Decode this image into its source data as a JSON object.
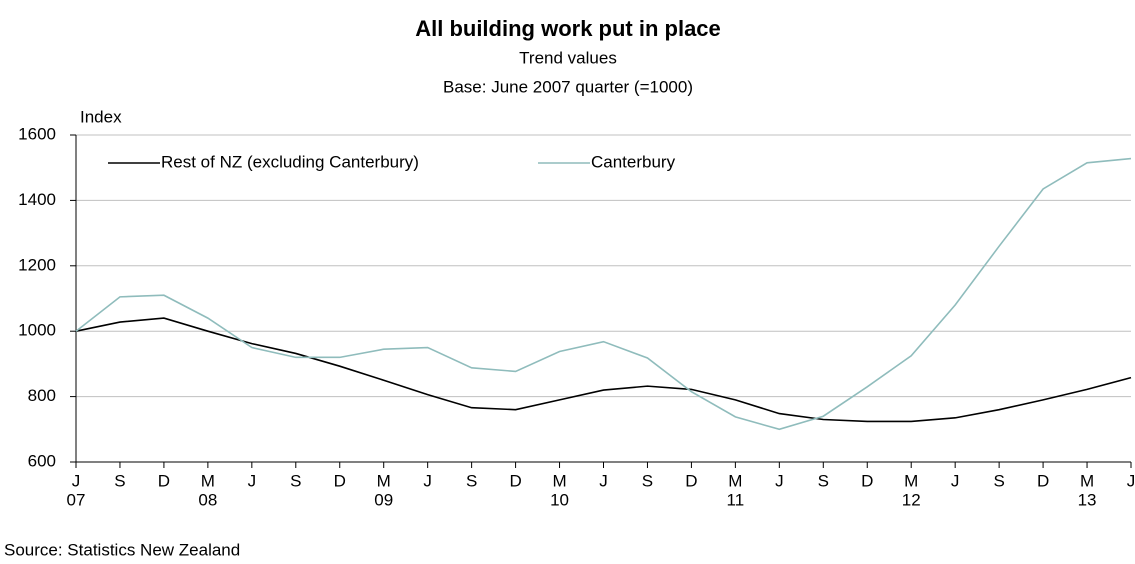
{
  "chart_data": {
    "type": "line",
    "title": "All building work put in place",
    "subtitle": [
      "Trend values",
      "Base: June 2007 quarter (=1000)"
    ],
    "y_label": "Index",
    "source": "Source: Statistics New Zealand",
    "categories": [
      "J",
      "S",
      "D",
      "M",
      "J",
      "S",
      "D",
      "M",
      "J",
      "S",
      "D",
      "M",
      "J",
      "S",
      "D",
      "M",
      "J",
      "S",
      "D",
      "M",
      "J",
      "S",
      "D",
      "M",
      "J"
    ],
    "category_years": [
      "07",
      null,
      null,
      "08",
      null,
      null,
      null,
      "09",
      null,
      null,
      null,
      "10",
      null,
      null,
      null,
      "11",
      null,
      null,
      null,
      "12",
      null,
      null,
      null,
      "13",
      null
    ],
    "series": [
      {
        "name": "Rest of NZ (excluding Canterbury)",
        "color": "#000000",
        "values": [
          1000,
          1028,
          1040,
          1000,
          962,
          932,
          893,
          850,
          806,
          766,
          760,
          790,
          820,
          832,
          822,
          790,
          748,
          730,
          724,
          724,
          735,
          760,
          790,
          822,
          858
        ]
      },
      {
        "name": "Canterbury",
        "color": "#8fbcbc",
        "values": [
          1000,
          1105,
          1110,
          1040,
          950,
          920,
          920,
          945,
          950,
          888,
          877,
          938,
          968,
          918,
          815,
          738,
          700,
          740,
          830,
          925,
          1080,
          1260,
          1435,
          1515,
          1528
        ]
      }
    ],
    "ylim": [
      600,
      1600
    ],
    "yticks": [
      600,
      800,
      1000,
      1200,
      1400,
      1600
    ],
    "grid": true
  }
}
